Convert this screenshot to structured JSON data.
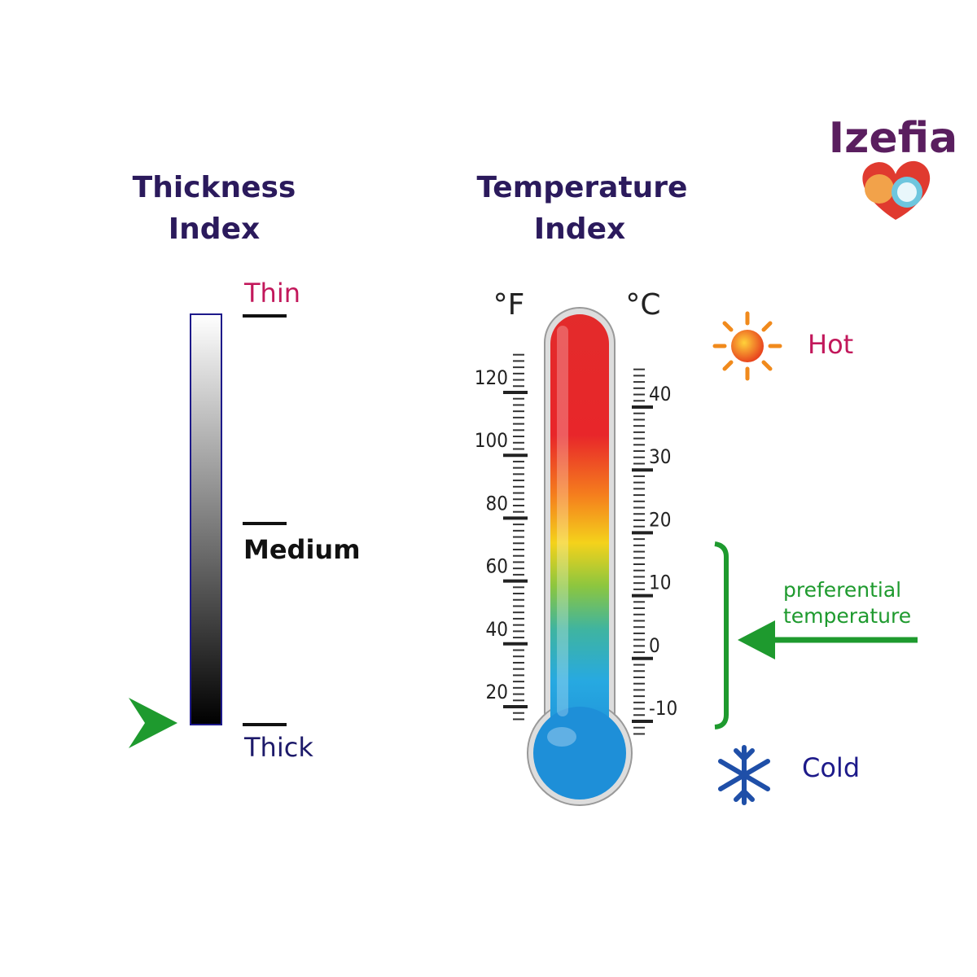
{
  "brand": "Izefia",
  "thickness": {
    "title": [
      "Thickness",
      "Index"
    ],
    "levels": [
      "Thin",
      "Medium",
      "Thick"
    ]
  },
  "temperature": {
    "title": [
      "Temperature",
      "Index"
    ],
    "fahrenheit": {
      "unit": "°F",
      "ticks": [
        20,
        40,
        60,
        80,
        100,
        120
      ]
    },
    "celsius": {
      "unit": "°C",
      "ticks": [
        -10,
        0,
        10,
        20,
        30,
        40
      ]
    },
    "hot": "Hot",
    "cold": "Cold",
    "preferential": [
      "preferential",
      "temperature"
    ]
  }
}
